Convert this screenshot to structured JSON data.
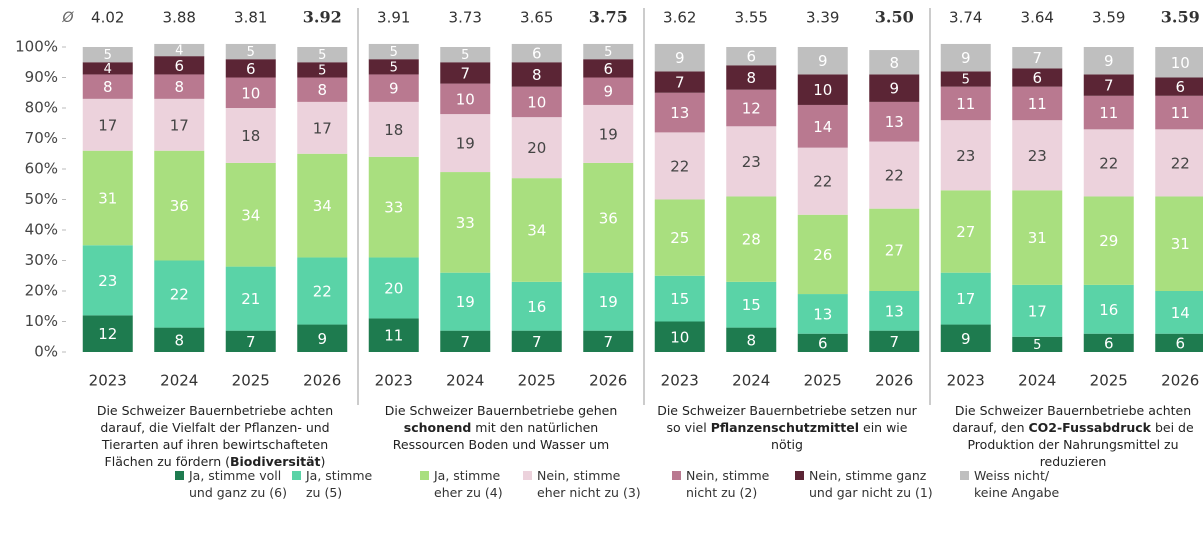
{
  "chart_data": {
    "type": "bar",
    "stacked": true,
    "grid": false,
    "average_symbol": "Ø",
    "categories": [
      "2023",
      "2024",
      "2025",
      "2026",
      "2023",
      "2024",
      "2025",
      "2026",
      "2023",
      "2024",
      "2025",
      "2026",
      "2023",
      "2024",
      "2025",
      "2026"
    ],
    "averages": [
      4.02,
      3.88,
      3.81,
      3.92,
      3.91,
      3.73,
      3.65,
      3.75,
      3.62,
      3.55,
      3.39,
      3.5,
      3.74,
      3.64,
      3.59,
      3.59
    ],
    "average_labels": [
      "4.02",
      "3.88",
      "3.81",
      "3.92",
      "3.91",
      "3.73",
      "3.65",
      "3.75",
      "3.62",
      "3.55",
      "3.39",
      "3.50",
      "3.74",
      "3.64",
      "3.59",
      "3.59"
    ],
    "average_bold": [
      false,
      false,
      false,
      true,
      false,
      false,
      false,
      true,
      false,
      false,
      false,
      true,
      false,
      false,
      false,
      true
    ],
    "groups": [
      {
        "label": [
          {
            "text": "Die Schweizer Bauernbetriebe achten darauf, die Vielfalt der Pflanzen- und Tierarten auf ihren bewirtschafteten Flächen zu fördern (",
            "bold": false
          },
          {
            "text": "Biodiversität",
            "bold": true
          },
          {
            "text": ")",
            "bold": false
          }
        ]
      },
      {
        "label": [
          {
            "text": "Die Schweizer Bauernbetriebe gehen ",
            "bold": false
          },
          {
            "text": "schonend",
            "bold": true
          },
          {
            "text": " mit den natürlichen Ressourcen Boden und Wasser um",
            "bold": false
          }
        ]
      },
      {
        "label": [
          {
            "text": "Die Schweizer Bauernbetriebe setzen nur so viel ",
            "bold": false
          },
          {
            "text": "Pflanzenschutzmittel",
            "bold": true
          },
          {
            "text": " ein wie nötig",
            "bold": false
          }
        ]
      },
      {
        "label": [
          {
            "text": "Die Schweizer Bauernbetriebe achten darauf, den ",
            "bold": false
          },
          {
            "text": "CO2-Fussabdruck",
            "bold": true
          },
          {
            "text": " bei de Produktion der Nahrungsmittel zu reduzieren",
            "bold": false
          }
        ]
      }
    ],
    "series": [
      {
        "name": "Ja, stimme voll\nund ganz zu (6)",
        "color": "#1e7b4f",
        "label_color": "#ffffff",
        "values": [
          12,
          8,
          7,
          9,
          11,
          7,
          7,
          7,
          10,
          8,
          6,
          7,
          9,
          5,
          6,
          6
        ]
      },
      {
        "name": "Ja, stimme\nzu (5)",
        "color": "#5ad3a7",
        "label_color": "#ffffff",
        "values": [
          23,
          22,
          21,
          22,
          20,
          19,
          16,
          19,
          15,
          15,
          13,
          13,
          17,
          17,
          16,
          14
        ]
      },
      {
        "name": "Ja, stimme\neher zu (4)",
        "color": "#a9df7f",
        "label_color": "#ffffff",
        "values": [
          31,
          36,
          34,
          34,
          33,
          33,
          34,
          36,
          25,
          28,
          26,
          27,
          27,
          31,
          29,
          31
        ]
      },
      {
        "name": "Nein, stimme\neher nicht zu (3)",
        "color": "#ecd2dc",
        "label_color": "#444444",
        "values": [
          17,
          17,
          18,
          17,
          18,
          19,
          20,
          19,
          22,
          23,
          22,
          22,
          23,
          23,
          22,
          22
        ]
      },
      {
        "name": "Nein, stimme\nnicht zu (2)",
        "color": "#b97990",
        "label_color": "#ffffff",
        "values": [
          8,
          8,
          10,
          8,
          9,
          10,
          10,
          9,
          13,
          12,
          14,
          13,
          11,
          11,
          11,
          11
        ]
      },
      {
        "name": "Nein, stimme ganz\nund gar nicht zu (1)",
        "color": "#5b2535",
        "label_color": "#ffffff",
        "values": [
          4,
          6,
          6,
          5,
          5,
          7,
          8,
          6,
          7,
          8,
          10,
          9,
          5,
          6,
          7,
          6
        ]
      },
      {
        "name": "Weiss nicht/\nkeine Angabe",
        "color": "#bfbfbf",
        "label_color": "#ffffff",
        "values": [
          5,
          4,
          5,
          5,
          5,
          5,
          6,
          5,
          9,
          6,
          9,
          8,
          9,
          7,
          9,
          10
        ]
      }
    ],
    "ylim": [
      0,
      100
    ],
    "yticks": [
      {
        "value": 0,
        "label": "0%"
      },
      {
        "value": 10,
        "label": "10%"
      },
      {
        "value": 20,
        "label": "20%"
      },
      {
        "value": 30,
        "label": "30%"
      },
      {
        "value": 40,
        "label": "40%"
      },
      {
        "value": 50,
        "label": "50%"
      },
      {
        "value": 60,
        "label": "60%"
      },
      {
        "value": 70,
        "label": "70%"
      },
      {
        "value": 80,
        "label": "80%"
      },
      {
        "value": 90,
        "label": "90%"
      },
      {
        "value": 100,
        "label": "100%"
      }
    ]
  }
}
